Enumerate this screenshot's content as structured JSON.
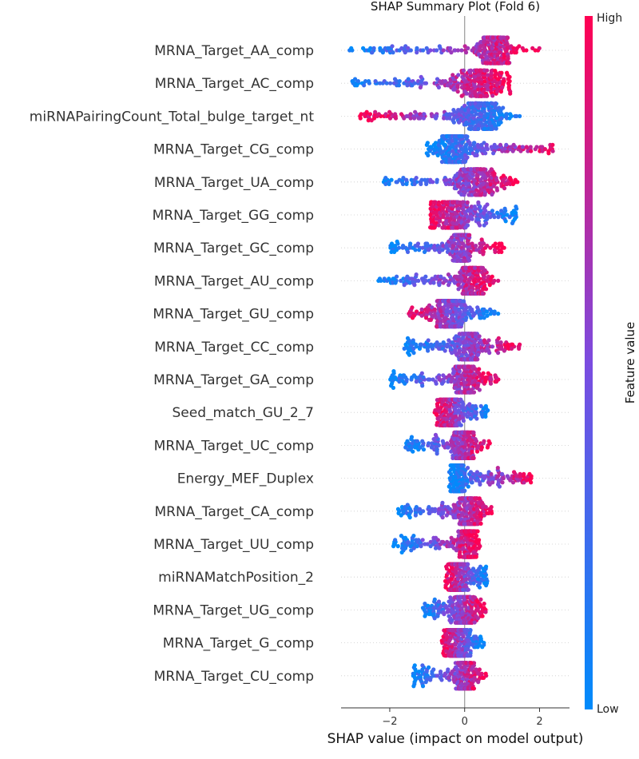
{
  "chart_data": {
    "type": "scatter",
    "subtype": "shap-beeswarm",
    "title": "SHAP Summary Plot (Fold 6)",
    "xlabel": "SHAP value (impact on model output)",
    "xlim": [
      -3.3,
      2.8
    ],
    "xticks": [
      -2,
      0,
      2
    ],
    "grid": false,
    "colorbar": {
      "label": "Feature value",
      "high_label": "High",
      "low_label": "Low",
      "low_color": "#008bfb",
      "high_color": "#ff0052",
      "mid_color": "#7b4ce0"
    },
    "features": [
      {
        "name": "MRNA_Target_AA_comp",
        "min": -3.1,
        "max": 2.0,
        "center": 0.8,
        "high_side": "right",
        "peak_width": 0.5
      },
      {
        "name": "MRNA_Target_AC_comp",
        "min": -3.0,
        "max": 1.2,
        "center": 0.4,
        "high_side": "right",
        "peak_width": 0.9
      },
      {
        "name": "miRNAPairingCount_Total_bulge_target_nt",
        "min": -2.8,
        "max": 1.5,
        "center": 0.4,
        "high_side": "left",
        "peak_width": 0.7
      },
      {
        "name": "MRNA_Target_CG_comp",
        "min": -1.0,
        "max": 2.5,
        "center": -0.3,
        "high_side": "right",
        "peak_width": 0.5
      },
      {
        "name": "MRNA_Target_UA_comp",
        "min": -2.2,
        "max": 1.5,
        "center": 0.3,
        "high_side": "right",
        "peak_width": 0.6
      },
      {
        "name": "MRNA_Target_GG_comp",
        "min": -0.9,
        "max": 1.4,
        "center": -0.4,
        "high_side": "left",
        "peak_width": 0.7
      },
      {
        "name": "MRNA_Target_GC_comp",
        "min": -2.0,
        "max": 1.1,
        "center": -0.1,
        "high_side": "right",
        "peak_width": 0.3
      },
      {
        "name": "MRNA_Target_AU_comp",
        "min": -2.3,
        "max": 0.9,
        "center": 0.2,
        "high_side": "right",
        "peak_width": 0.4
      },
      {
        "name": "MRNA_Target_GU_comp",
        "min": -1.5,
        "max": 0.9,
        "center": -0.4,
        "high_side": "left",
        "peak_width": 0.5
      },
      {
        "name": "MRNA_Target_CC_comp",
        "min": -1.6,
        "max": 1.5,
        "center": 0.1,
        "high_side": "right",
        "peak_width": 0.4
      },
      {
        "name": "MRNA_Target_GA_comp",
        "min": -2.0,
        "max": 0.9,
        "center": 0.0,
        "high_side": "right",
        "peak_width": 0.4
      },
      {
        "name": "Seed_match_GU_2_7",
        "min": -0.8,
        "max": 0.6,
        "center": -0.4,
        "high_side": "left",
        "peak_width": 0.35
      },
      {
        "name": "MRNA_Target_UC_comp",
        "min": -1.6,
        "max": 0.7,
        "center": 0.0,
        "high_side": "right",
        "peak_width": 0.3
      },
      {
        "name": "Energy_MEF_Duplex",
        "min": -0.4,
        "max": 1.8,
        "center": -0.2,
        "high_side": "right",
        "peak_width": 0.2
      },
      {
        "name": "MRNA_Target_CA_comp",
        "min": -1.8,
        "max": 0.8,
        "center": 0.1,
        "high_side": "right",
        "peak_width": 0.35
      },
      {
        "name": "MRNA_Target_UU_comp",
        "min": -1.9,
        "max": 0.4,
        "center": 0.1,
        "high_side": "right",
        "peak_width": 0.3
      },
      {
        "name": "miRNAMatchPosition_2",
        "min": -0.5,
        "max": 0.6,
        "center": -0.2,
        "high_side": "left",
        "peak_width": 0.3
      },
      {
        "name": "MRNA_Target_UG_comp",
        "min": -1.1,
        "max": 0.6,
        "center": 0.0,
        "high_side": "right",
        "peak_width": 0.35
      },
      {
        "name": "MRNA_Target_G_comp",
        "min": -0.6,
        "max": 0.5,
        "center": -0.2,
        "high_side": "left",
        "peak_width": 0.35
      },
      {
        "name": "MRNA_Target_CU_comp",
        "min": -1.4,
        "max": 0.6,
        "center": 0.0,
        "high_side": "right",
        "peak_width": 0.3
      }
    ]
  }
}
